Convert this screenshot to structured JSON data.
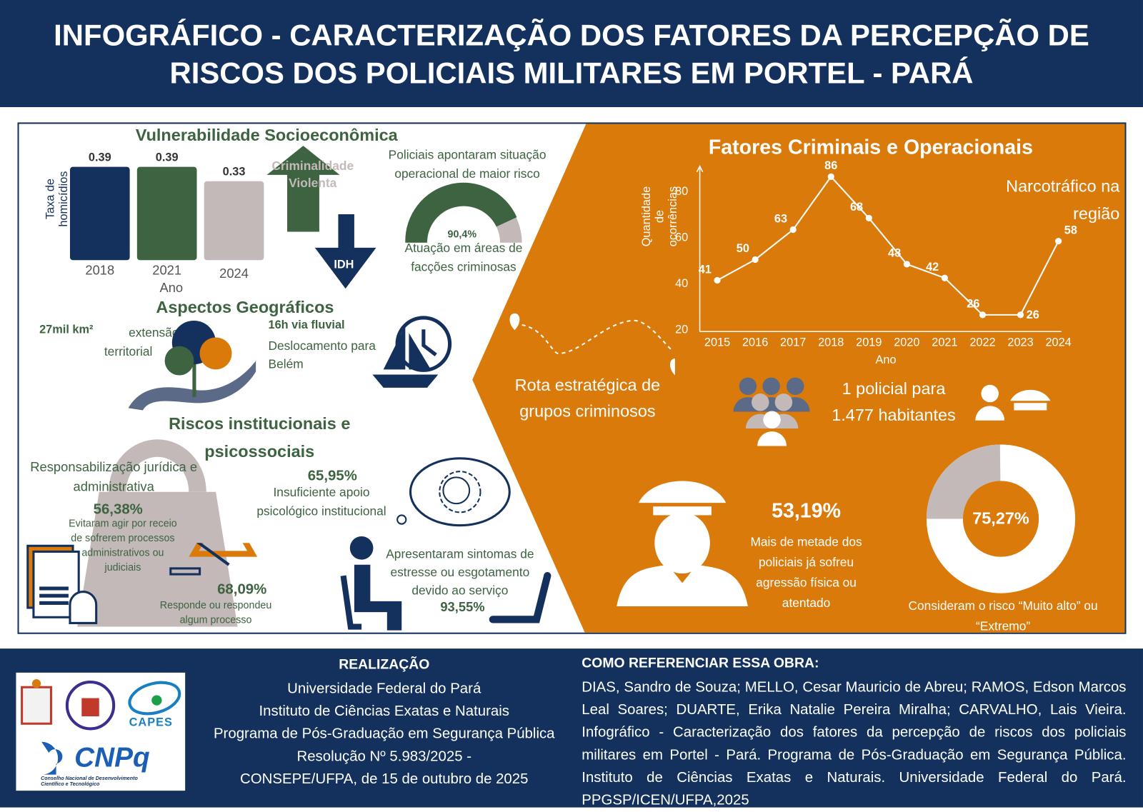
{
  "title": "INFOGRÁFICO - CARACTERIZAÇÃO DOS FATORES DA PERCEPÇÃO DE RISCOS DOS POLICIAIS MILITARES EM PORTEL - PARÁ",
  "colors": {
    "navy": "#13315c",
    "orange": "#d97a0b",
    "green": "#3d6340",
    "gray": "#c4b9b9"
  },
  "socio": {
    "heading": "Vulnerabilidade Socioeconômica",
    "criminalidade": "Criminalidade Violenta",
    "idh": "IDH",
    "situacao": "Policiais apontaram situação operacional de maior risco",
    "gauge_value": "90,4%",
    "gauge_caption": "Atuação em áreas de facções criminosas"
  },
  "geo": {
    "heading": "Aspectos Geográficos",
    "area_value": "27mil km²",
    "area_label": "extensão territorial",
    "fluvial_value": "16h via fluvial",
    "fluvial_label": "Deslocamento para Belém"
  },
  "riscos": {
    "heading": "Riscos institucionais e psicossociais",
    "resp": "Responsabilização jurídica e administrativa",
    "v1": "56,38%",
    "d1": "Evitaram agir por receio de sofrerem processos administrativos ou judiciais",
    "v2": "68,09%",
    "d2": "Responde ou respondeu algum processo",
    "v3": "65,95%",
    "d3": "Insuficiente apoio psicológico institucional",
    "d4": "Apresentaram sintomas de estresse ou esgotamento devido ao serviço",
    "v4": "93,55%"
  },
  "crim": {
    "heading": "Fatores Criminais e Operacionais",
    "narco": "Narcotráfico na região",
    "rota": "Rota estratégica de grupos criminosos",
    "ratio": "1 policial para 1.477 habitantes",
    "agressao_value": "53,19%",
    "agressao_label": "Mais de metade dos policiais já sofreu agressão física ou atentado",
    "risco_value": "75,27%",
    "risco_label": "Consideram o risco “Muito alto” ou “Extremo”"
  },
  "chart_data": [
    {
      "type": "bar",
      "title": "Vulnerabilidade Socioeconômica",
      "ylabel": "Taxa de homicídios",
      "xlabel": "Ano",
      "categories": [
        "2018",
        "2021",
        "2024"
      ],
      "values": [
        0.39,
        0.39,
        0.33
      ],
      "labels": [
        "0.39",
        "0.39",
        "0.33"
      ],
      "colors": [
        "#13315c",
        "#3d6340",
        "#c4b9b9"
      ]
    },
    {
      "type": "line",
      "xlabel": "Ano",
      "ylabel": "Quantidade de ocorrências",
      "x": [
        "2015",
        "2016",
        "2017",
        "2018",
        "2019",
        "2020",
        "2021",
        "2022",
        "2023",
        "2024"
      ],
      "values": [
        41,
        50,
        63,
        86,
        68,
        48,
        42,
        26,
        26,
        58
      ],
      "yticks": [
        "20",
        "40",
        "60",
        "80"
      ],
      "ylim": [
        20,
        86
      ]
    }
  ],
  "footer": {
    "realizacao_heading": "REALIZAÇÃO",
    "realizacao_lines": [
      "Universidade Federal do Pará",
      "Instituto de Ciências Exatas e Naturais",
      "Programa de Pós-Graduação em Segurança Pública",
      "Resolução Nº 5.983/2025 -",
      "CONSEPE/UFPA, de 15 de outubro de 2025"
    ],
    "ref_heading": "COMO REFERENCIAR ESSA OBRA:",
    "ref_text": "DIAS, Sandro de Souza; MELLO, Cesar Mauricio de Abreu; RAMOS, Edson Marcos Leal Soares; DUARTE, Erika Natalie Pereira Miralha; CARVALHO, Lais Vieira. Infográfico - Caracterização dos fatores da percepção de riscos dos policiais militares em Portel - Pará. Programa de Pós-Graduação em Segurança Pública. Instituto de Ciências Exatas e Naturais. Universidade Federal do Pará. PPGSP/ICEN/UFPA,2025",
    "logos": {
      "capes": "CAPES",
      "cnpq": "CNPq",
      "cnpq_sub": "Conselho Nacional de Desenvolvimento Científico e Tecnológico"
    }
  }
}
